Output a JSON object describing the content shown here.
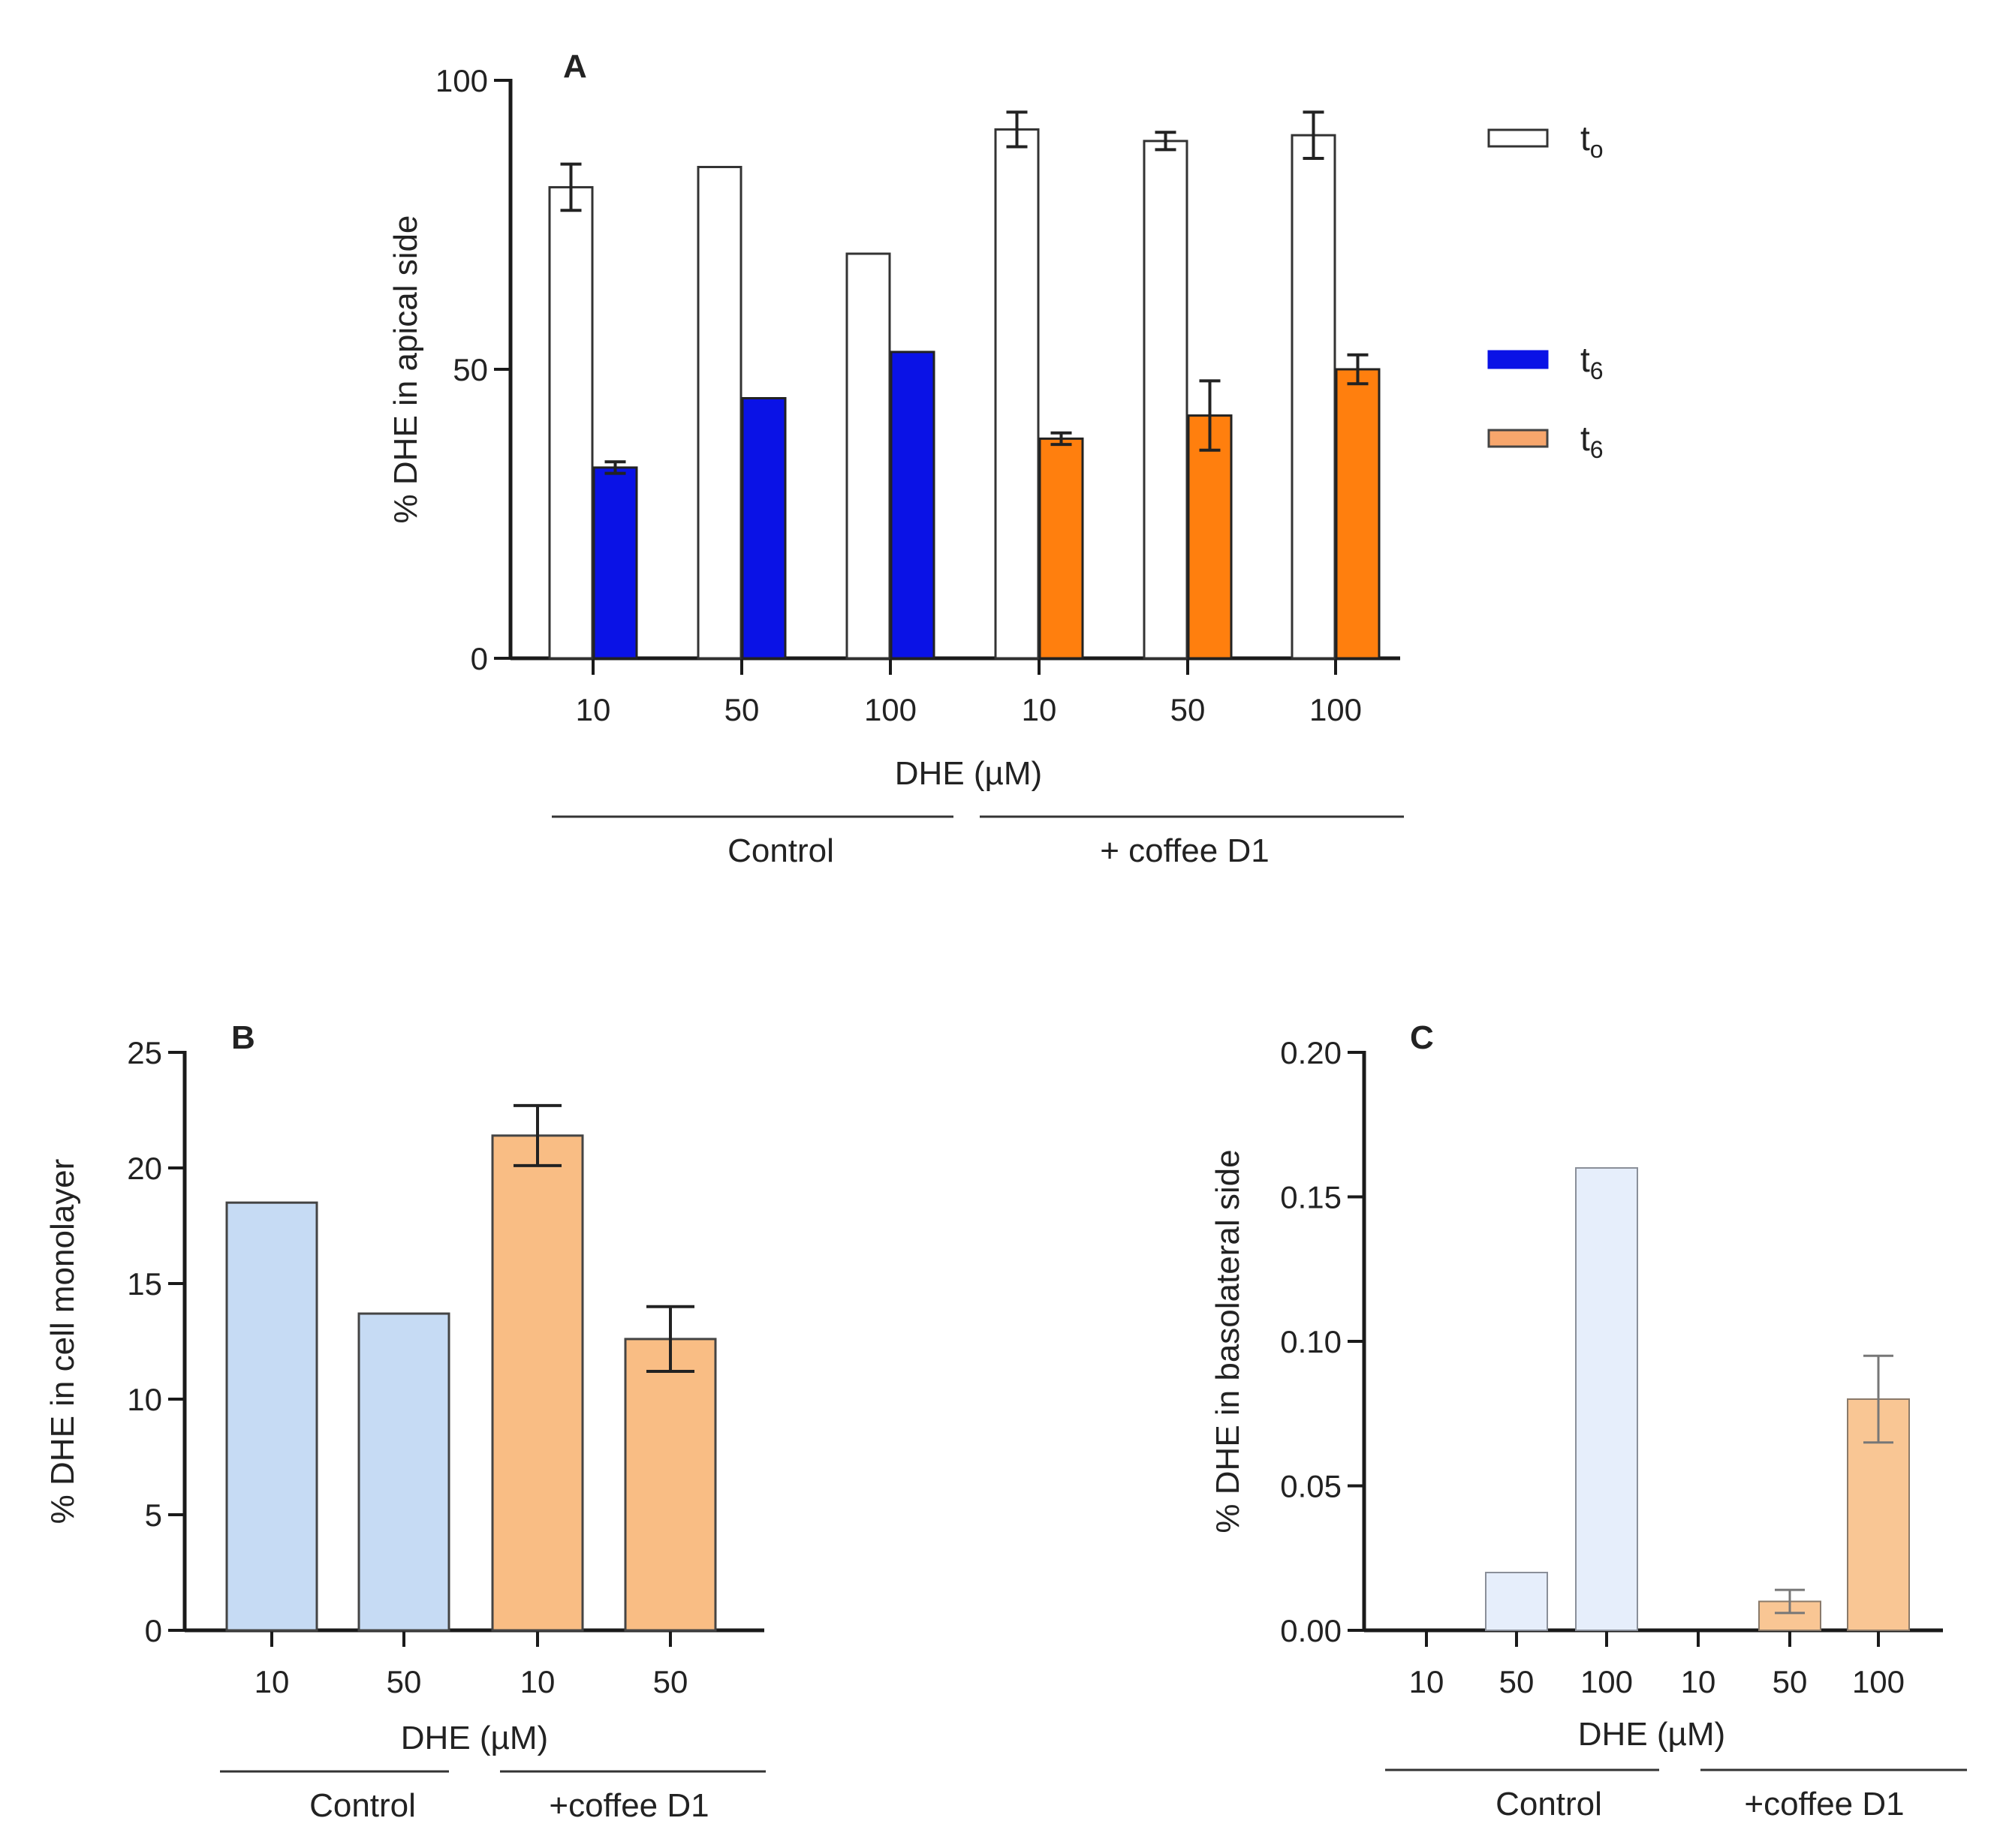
{
  "colors": {
    "t0_fill": "#ffffff",
    "control_t6": "#0a12e6",
    "coffee_t6": "#ff7f0e",
    "panel_b_control": "#c6dbf4",
    "panel_b_coffee": "#f9bd84",
    "panel_c_control": "#e6eefb",
    "panel_c_coffee": "#f9c694",
    "legend_coffee_swatch": "#f7a66c",
    "axis": "#1a1a1a"
  },
  "chart_data": [
    {
      "id": "A",
      "type": "bar",
      "panel_label": "A",
      "ylabel": "% DHE in apical side",
      "xlabel": "DHE (µM)",
      "ylim": [
        0,
        100
      ],
      "yticks": [
        "0",
        "50",
        "100"
      ],
      "categories": [
        "10",
        "50",
        "100",
        "10",
        "50",
        "100"
      ],
      "groups": [
        {
          "label": "Control",
          "categories": [
            0,
            1,
            2
          ]
        },
        {
          "label": "+ coffee D1",
          "categories": [
            3,
            4,
            5
          ]
        }
      ],
      "series": [
        {
          "name": "t0",
          "legend_main": "t",
          "legend_sub": "o",
          "values": [
            81.5,
            85,
            70,
            91.5,
            89.5,
            90.5
          ],
          "errors": [
            4,
            null,
            null,
            3,
            1.5,
            4
          ]
        },
        {
          "name": "t6",
          "legend_main": "t",
          "legend_sub": "6",
          "values": [
            33,
            45,
            53,
            null,
            null,
            null
          ],
          "errors": [
            1,
            null,
            null,
            null,
            null,
            null
          ]
        },
        {
          "name": "t6",
          "legend_main": "t",
          "legend_sub": "6",
          "values": [
            null,
            null,
            null,
            38,
            42,
            50
          ],
          "errors": [
            null,
            null,
            null,
            1,
            6,
            2.5
          ]
        }
      ]
    },
    {
      "id": "B",
      "type": "bar",
      "panel_label": "B",
      "ylabel": "% DHE in cell monolayer",
      "xlabel": "DHE (µM)",
      "ylim": [
        0,
        25
      ],
      "yticks": [
        "0",
        "5",
        "10",
        "15",
        "20",
        "25"
      ],
      "categories": [
        "10",
        "50",
        "10",
        "50"
      ],
      "groups": [
        {
          "label": "Control",
          "categories": [
            0,
            1
          ]
        },
        {
          "label": "+coffee D1",
          "categories": [
            2,
            3
          ]
        }
      ],
      "values": [
        18.5,
        13.7,
        21.4,
        12.6
      ],
      "errors": [
        null,
        null,
        1.3,
        1.4
      ]
    },
    {
      "id": "C",
      "type": "bar",
      "panel_label": "C",
      "ylabel": "% DHE in basolateral side",
      "xlabel": "DHE (µM)",
      "ylim": [
        0,
        0.2
      ],
      "yticks": [
        "0.00",
        "0.05",
        "0.10",
        "0.15",
        "0.20"
      ],
      "categories": [
        "10",
        "50",
        "100",
        "10",
        "50",
        "100"
      ],
      "groups": [
        {
          "label": "Control",
          "categories": [
            0,
            1,
            2
          ]
        },
        {
          "label": "+coffee D1",
          "categories": [
            3,
            4,
            5
          ]
        }
      ],
      "values": [
        0,
        0.02,
        0.16,
        0,
        0.01,
        0.08
      ],
      "errors": [
        null,
        null,
        null,
        null,
        0.004,
        0.015
      ]
    }
  ]
}
